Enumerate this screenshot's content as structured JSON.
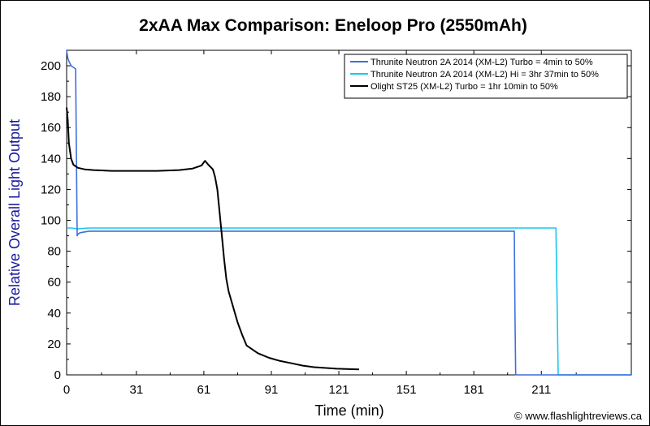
{
  "chart_data": {
    "type": "line",
    "title": "2xAA Max Comparison: Eneloop Pro (2550mAh)",
    "xlabel": "Time (min)",
    "ylabel": "Relative Overall Light Output",
    "xlim": [
      0,
      251
    ],
    "ylim": [
      0,
      210
    ],
    "x_ticks": [
      0,
      31,
      61,
      91,
      121,
      151,
      181,
      211
    ],
    "y_ticks": [
      0,
      20,
      40,
      60,
      80,
      100,
      120,
      140,
      160,
      180,
      200
    ],
    "grid": false,
    "legend_position": "top-right",
    "credit": "© www.flashlightreviews.ca",
    "series": [
      {
        "name": "Thrunite Neutron 2A 2014 (XM-L2) Turbo = 4min to 50%",
        "color": "#3d6fd9",
        "x": [
          0,
          0.5,
          1,
          2,
          3,
          4,
          4.3,
          4.7,
          5,
          6,
          8,
          10,
          15,
          20,
          30,
          60,
          90,
          120,
          150,
          180,
          199,
          199.3,
          199.6,
          200,
          251
        ],
        "y": [
          210,
          205,
          203,
          200,
          199,
          198,
          150,
          90,
          91,
          92,
          92.5,
          93,
          93,
          93,
          93,
          93,
          93,
          93,
          93,
          93,
          93,
          40,
          0,
          0,
          0
        ]
      },
      {
        "name": "Thrunite Neutron 2A 2014 (XM-L2) Hi = 3hr 37min to 50%",
        "color": "#19c8ee",
        "x": [
          0,
          2,
          5,
          10,
          30,
          60,
          90,
          120,
          150,
          180,
          200,
          215,
          217.5,
          218,
          218.5,
          219,
          251
        ],
        "y": [
          95,
          95,
          94.5,
          95,
          95,
          95,
          95,
          95,
          95,
          95,
          95,
          95,
          95,
          50,
          0,
          0,
          0
        ]
      },
      {
        "name": "Olight ST25 (XM-L2) Turbo = 1hr 10min to 50%",
        "color": "#000000",
        "x": [
          0,
          0.5,
          1,
          2,
          3,
          5,
          8,
          12,
          20,
          30,
          40,
          50,
          56,
          60,
          61.5,
          63,
          65,
          66,
          67,
          68,
          69,
          70,
          71,
          72,
          74,
          76,
          78,
          80,
          85,
          90,
          95,
          100,
          105,
          110,
          120,
          130
        ],
        "y": [
          173,
          165,
          150,
          140,
          136,
          134,
          133,
          132.5,
          132,
          132,
          132,
          132.5,
          133.5,
          135.5,
          138.5,
          136,
          133,
          128,
          120,
          105,
          90,
          75,
          62,
          54,
          44,
          34,
          26,
          19,
          14,
          11,
          9,
          7.5,
          6,
          5,
          4,
          3.5
        ]
      }
    ]
  }
}
